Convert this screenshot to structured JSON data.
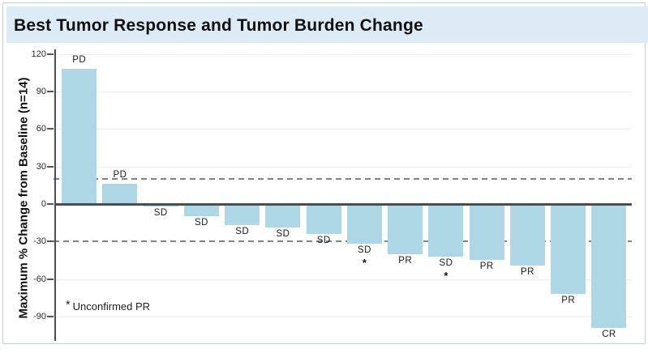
{
  "header": {
    "title": "Best Tumor Response and Tumor Burden Change"
  },
  "chart_data": {
    "type": "bar",
    "title": "Best Tumor Response and Tumor Burden Change",
    "xlabel": "",
    "ylabel": "Maximum % Change from Baseline (n=14)",
    "ylim": [
      -109,
      124
    ],
    "yticks": [
      120,
      90,
      60,
      30,
      0,
      -30,
      -60,
      -90
    ],
    "grid": true,
    "legend_position": "none",
    "reference_lines": [
      {
        "y": 20,
        "style": "dashed"
      },
      {
        "y": -30,
        "style": "dashed"
      }
    ],
    "bars": [
      {
        "label": "PD",
        "value": 108,
        "unconfirmed": false
      },
      {
        "label": "PD",
        "value": 16,
        "unconfirmed": false
      },
      {
        "label": "SD",
        "value": -2,
        "unconfirmed": false
      },
      {
        "label": "SD",
        "value": -10,
        "unconfirmed": false
      },
      {
        "label": "SD",
        "value": -17,
        "unconfirmed": false
      },
      {
        "label": "SD",
        "value": -19,
        "unconfirmed": false
      },
      {
        "label": "SD",
        "value": -24,
        "unconfirmed": false
      },
      {
        "label": "SD",
        "value": -32,
        "unconfirmed": true
      },
      {
        "label": "PR",
        "value": -40,
        "unconfirmed": false
      },
      {
        "label": "SD",
        "value": -42,
        "unconfirmed": true
      },
      {
        "label": "PR",
        "value": -45,
        "unconfirmed": false
      },
      {
        "label": "PR",
        "value": -49,
        "unconfirmed": false
      },
      {
        "label": "PR",
        "value": -72,
        "unconfirmed": false
      },
      {
        "label": "CR",
        "value": -99,
        "unconfirmed": false
      }
    ],
    "annotation": {
      "marker": "*",
      "text": "Unconfirmed PR"
    },
    "colors": {
      "bar_fill": "#aed7e6",
      "header_background": "#dcebf5",
      "card_border": "#b9d0dd",
      "zero_line": "#4d4d4d",
      "dashed_line": "#828282",
      "grid_line": "#ececec",
      "text": "#1a1a1a"
    }
  }
}
